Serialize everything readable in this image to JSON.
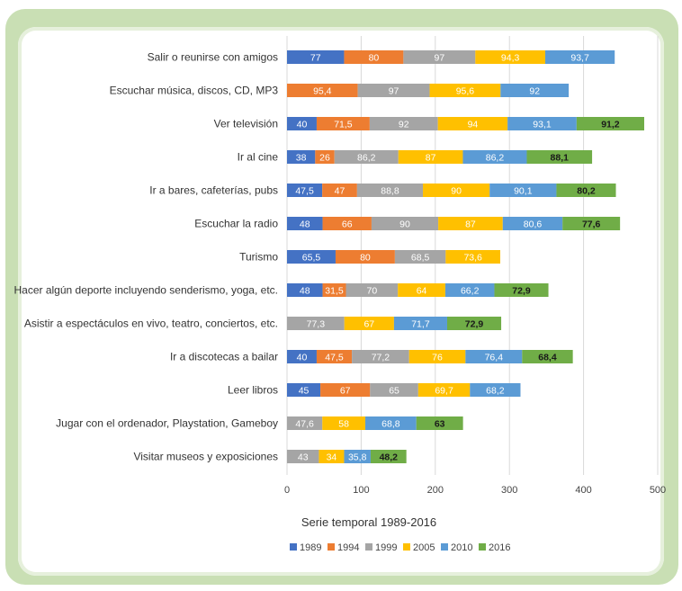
{
  "chart_data": {
    "type": "bar",
    "orientation": "horizontal",
    "stacked": true,
    "xlabel": "Serie temporal 1989-2016",
    "xlim": [
      0,
      500
    ],
    "xticks": [
      "0",
      "100",
      "200",
      "300",
      "400",
      "500"
    ],
    "grid": true,
    "legend_position": "bottom",
    "categories": [
      "Salir o reunirse con amigos",
      "Escuchar música, discos, CD, MP3",
      "Ver televisión",
      "Ir al cine",
      "Ir a bares, cafeterías, pubs",
      "Escuchar la radio",
      "Turismo",
      "Hacer algún deporte incluyendo senderismo, yoga, etc.",
      "Asistir a espectáculos en vivo, teatro, conciertos, etc.",
      "Ir a discotecas a bailar",
      "Leer libros",
      "Jugar con el ordenador, Playstation, Gameboy",
      "Visitar museos y exposiciones"
    ],
    "series": [
      {
        "name": "1989",
        "color": "#4472c4",
        "values": [
          77,
          null,
          40,
          38,
          47.5,
          48,
          65.5,
          48,
          0,
          40,
          45,
          null,
          null
        ],
        "labels": [
          "77",
          "",
          "40",
          "38",
          "47,5",
          "48",
          "65,5",
          "48",
          "0",
          "40",
          "45",
          "",
          ""
        ]
      },
      {
        "name": "1994",
        "color": "#ed7d31",
        "values": [
          80,
          95.4,
          71.5,
          26,
          47,
          66,
          80,
          31.5,
          null,
          47.5,
          67,
          null,
          null
        ],
        "labels": [
          "80",
          "95,4",
          "71,5",
          "26",
          "47",
          "66",
          "80",
          "31,5",
          "",
          "47,5",
          "67",
          "",
          ""
        ]
      },
      {
        "name": "1999",
        "color": "#a5a5a5",
        "values": [
          97,
          97,
          92,
          86.2,
          88.8,
          90,
          68.5,
          70,
          77.3,
          77.2,
          65,
          47.6,
          43
        ],
        "labels": [
          "97",
          "97",
          "92",
          "86,2",
          "88,8",
          "90",
          "68,5",
          "70",
          "77,3",
          "77,2",
          "65",
          "47,6",
          "43"
        ]
      },
      {
        "name": "2005",
        "color": "#ffc000",
        "values": [
          94.3,
          95.6,
          94,
          87,
          90,
          87,
          73.6,
          64,
          67,
          76,
          69.7,
          58,
          34
        ],
        "labels": [
          "94,3",
          "95,6",
          "94",
          "87",
          "90",
          "87",
          "73,6",
          "64",
          "67",
          "76",
          "69,7",
          "58",
          "34"
        ]
      },
      {
        "name": "2010",
        "color": "#5b9bd5",
        "values": [
          93.7,
          92,
          93.1,
          86.2,
          90.1,
          80.6,
          null,
          66.2,
          71.7,
          76.4,
          68.2,
          68.8,
          35.8
        ],
        "labels": [
          "93,7",
          "92",
          "93,1",
          "86,2",
          "90,1",
          "80,6",
          "",
          "66,2",
          "71,7",
          "76,4",
          "68,2",
          "68,8",
          "35,8"
        ]
      },
      {
        "name": "2016",
        "color": "#70ad47",
        "values": [
          null,
          null,
          91.2,
          88.1,
          80.2,
          77.6,
          null,
          72.9,
          72.9,
          68.4,
          null,
          63,
          48.2
        ],
        "labels": [
          "",
          "",
          "91,2",
          "88,1",
          "80,2",
          "77,6",
          "",
          "72,9",
          "72,9",
          "68,4",
          "",
          "63",
          "48,2"
        ]
      }
    ]
  }
}
